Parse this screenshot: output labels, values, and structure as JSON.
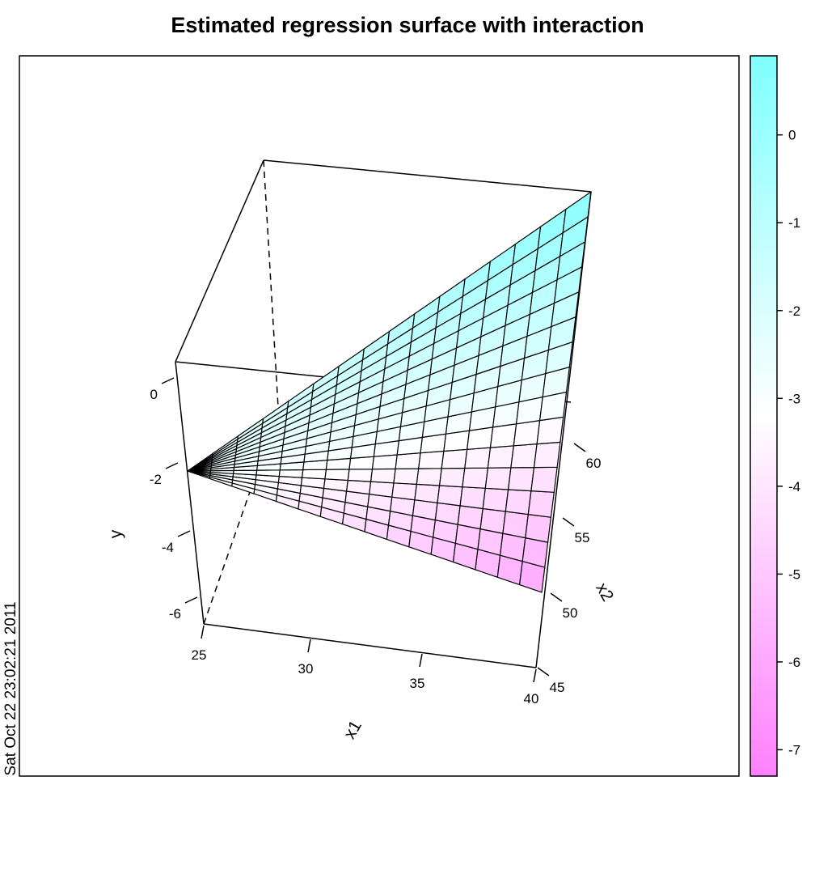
{
  "title": "Estimated regression surface with interaction",
  "timestamp": "Sat Oct 22 23:02:21 2011",
  "chart_data": {
    "type": "surface",
    "title": "Estimated regression surface with interaction",
    "xlabel": "x1",
    "ylabel": "x2",
    "zlabel": "y",
    "xlim": [
      25,
      40
    ],
    "ylim": [
      45,
      65
    ],
    "zlim": [
      -7,
      1
    ],
    "x_ticks": [
      "25",
      "30",
      "35",
      "40"
    ],
    "y_ticks": [
      "45",
      "50",
      "55",
      "60"
    ],
    "z_ticks": [
      "0",
      "-2",
      "-4",
      "-6"
    ],
    "grid_size": 16,
    "surface_corners": {
      "x1_25_x2_45": -2.8,
      "x1_25_x2_65": -2.6,
      "x1_40_x2_45": -6.1,
      "x1_40_x2_65": 0.6
    },
    "colorkey": {
      "range": [
        -7.3,
        0.9
      ],
      "ticks": [
        "0",
        "-1",
        "-2",
        "-3",
        "-4",
        "-5",
        "-6",
        "-7"
      ],
      "low_color": "#ff80ff",
      "mid_color": "#ffffff",
      "high_color": "#80ffff"
    }
  }
}
